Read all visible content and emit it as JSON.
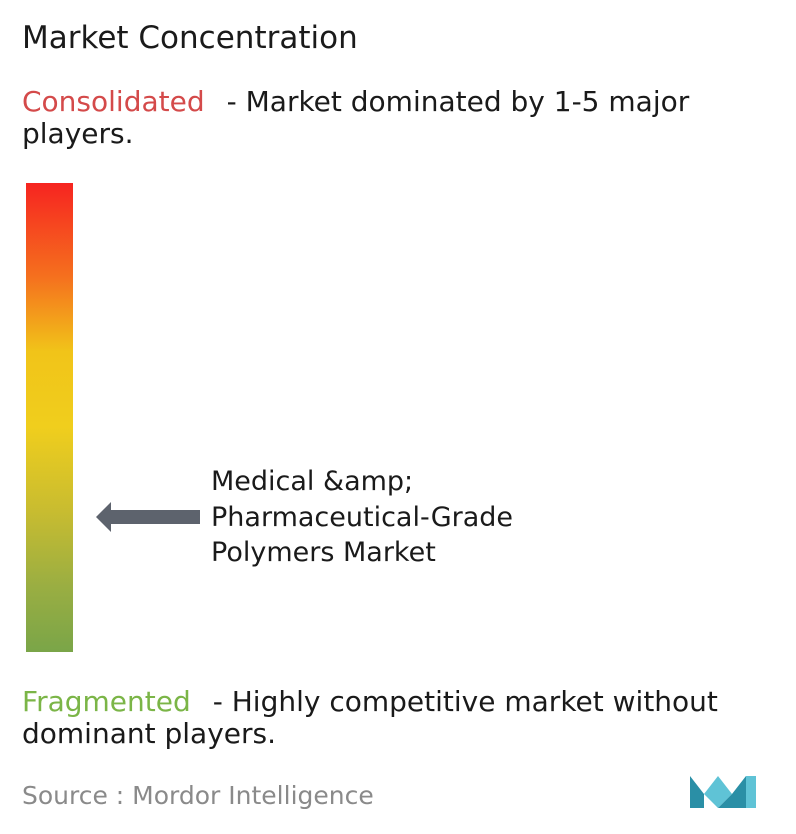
{
  "chart_data": {
    "type": "gradient-scale",
    "title": "Market Concentration",
    "top_label": "Consolidated",
    "top_description": "- Market dominated by 1-5 major players.",
    "bottom_label": "Fragmented",
    "bottom_description": "- Highly competitive market without dominant players.",
    "marker_label": "Medical &amp;\nPharmaceutical-Grade\nPolymers Market",
    "marker_position": 0.3,
    "scale_colors": {
      "top": "#f62420",
      "middle": "#f0ce1d",
      "bottom": "#7aa548"
    },
    "label_colors": {
      "consolidated": "#d44a4a",
      "fragmented": "#7bb547"
    },
    "pointer_color": "#5d636d"
  },
  "source": "Source :  Mordor Intelligence",
  "logo": {
    "icon": "mordor-intelligence-logo-icon",
    "colors": [
      "#2a8fa6",
      "#5fc3d6"
    ]
  }
}
